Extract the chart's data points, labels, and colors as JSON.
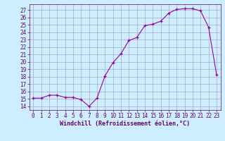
{
  "x_vals": [
    0,
    1,
    2,
    3,
    4,
    5,
    6,
    7,
    8,
    9,
    10,
    11,
    12,
    13,
    14,
    15,
    16,
    17,
    18,
    19,
    20,
    21,
    22,
    23
  ],
  "y_vals": [
    15.1,
    15.1,
    15.5,
    15.5,
    15.2,
    15.2,
    14.9,
    14.0,
    15.1,
    18.1,
    19.9,
    21.1,
    22.9,
    23.3,
    24.9,
    25.1,
    25.5,
    26.6,
    27.1,
    27.2,
    27.2,
    26.9,
    24.7,
    18.3
  ],
  "xlabel": "Windchill (Refroidissement éolien,°C)",
  "xlim": [
    -0.5,
    23.5
  ],
  "ylim": [
    13.5,
    27.8
  ],
  "yticks": [
    14,
    15,
    16,
    17,
    18,
    19,
    20,
    21,
    22,
    23,
    24,
    25,
    26,
    27
  ],
  "xticks": [
    0,
    1,
    2,
    3,
    4,
    5,
    6,
    7,
    8,
    9,
    10,
    11,
    12,
    13,
    14,
    15,
    16,
    17,
    18,
    19,
    20,
    21,
    22,
    23
  ],
  "line_color": "#990099",
  "marker": "+",
  "bg_color": "#cceeff",
  "grid_color": "#aaaacc",
  "font_color": "#660066",
  "tick_fontsize": 5.5,
  "xlabel_fontsize": 6.0
}
